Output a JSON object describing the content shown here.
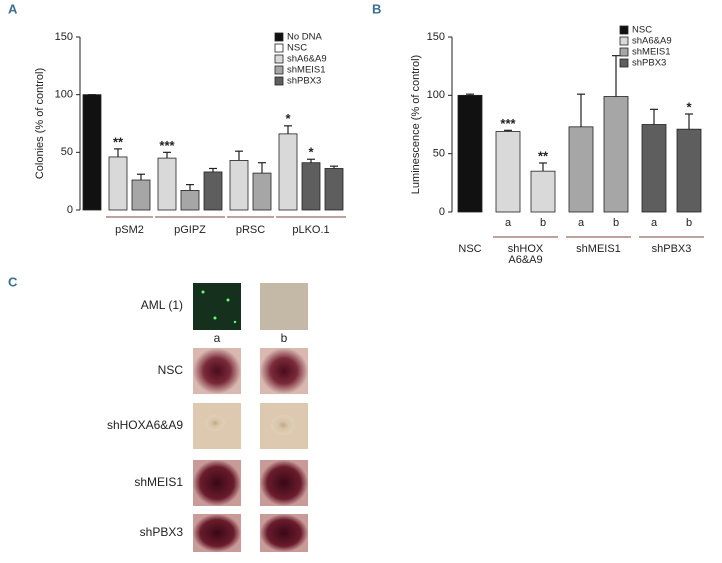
{
  "chart_data": [
    {
      "type": "bar",
      "panel": "A",
      "ylabel": "Colonies (% of control)",
      "ylim": [
        0,
        150
      ],
      "yticks": [
        0,
        50,
        100,
        150
      ],
      "series": [
        {
          "name": "No DNA",
          "color": "#111111"
        },
        {
          "name": "NSC",
          "color": "#ffffff"
        },
        {
          "name": "shA6&A9",
          "color": "#d9d9d9"
        },
        {
          "name": "shMEIS1",
          "color": "#a6a6a6"
        },
        {
          "name": "shPBX3",
          "color": "#5e5e5e"
        }
      ],
      "groups": [
        {
          "label": null,
          "bars": [
            {
              "series": 0,
              "value": 100,
              "error": 0
            }
          ]
        },
        {
          "label": "pSM2",
          "bars": [
            {
              "series": 2,
              "value": 46,
              "error": 7,
              "sig": "**"
            },
            {
              "series": 3,
              "value": 26,
              "error": 5
            }
          ]
        },
        {
          "label": "pGIPZ",
          "bars": [
            {
              "series": 2,
              "value": 45,
              "error": 5,
              "sig": "***"
            },
            {
              "series": 3,
              "value": 17,
              "error": 5
            },
            {
              "series": 4,
              "value": 33,
              "error": 3
            }
          ]
        },
        {
          "label": "pRSC",
          "bars": [
            {
              "series": 2,
              "value": 43,
              "error": 8
            },
            {
              "series": 3,
              "value": 32,
              "error": 9
            }
          ]
        },
        {
          "label": "pLKO.1",
          "bars": [
            {
              "series": 2,
              "value": 66,
              "error": 7,
              "sig": "*"
            },
            {
              "series": 4,
              "value": 41,
              "error": 3,
              "sig": "*"
            },
            {
              "series": 4,
              "value": 36,
              "error": 2
            }
          ]
        }
      ]
    },
    {
      "type": "bar",
      "panel": "B",
      "ylabel": "Luminescence (% of control)",
      "ylim": [
        0,
        150
      ],
      "yticks": [
        0,
        50,
        100,
        150
      ],
      "series": [
        {
          "name": "NSC",
          "color": "#111111"
        },
        {
          "name": "shA6&A9",
          "color": "#d9d9d9"
        },
        {
          "name": "shMEIS1",
          "color": "#a6a6a6"
        },
        {
          "name": "shPBX3",
          "color": "#5e5e5e"
        }
      ],
      "groups": [
        {
          "label": [
            "NSC"
          ],
          "bars": [
            {
              "series": 0,
              "value": 100,
              "error": 1
            }
          ]
        },
        {
          "label": [
            "shHOX",
            "A6&A9"
          ],
          "bars": [
            {
              "series": 1,
              "value": 69,
              "error": 1,
              "sig": "***",
              "sub": "a"
            },
            {
              "series": 1,
              "value": 35,
              "error": 7,
              "sig": "**",
              "sub": "b"
            }
          ]
        },
        {
          "label": [
            "shMEIS1"
          ],
          "bars": [
            {
              "series": 2,
              "value": 73,
              "error": 28,
              "sub": "a"
            },
            {
              "series": 2,
              "value": 99,
              "error": 35,
              "sub": "b"
            }
          ]
        },
        {
          "label": [
            "shPBX3"
          ],
          "bars": [
            {
              "series": 3,
              "value": 75,
              "error": 13,
              "sub": "a"
            },
            {
              "series": 3,
              "value": 71,
              "error": 13,
              "sig": "*",
              "sub": "b"
            }
          ]
        }
      ]
    }
  ],
  "panel_c": {
    "panel": "C",
    "rows": [
      "AML (1)",
      "NSC",
      "shHOXA6&A9",
      "shMEIS1",
      "shPBX3"
    ],
    "columns": [
      "a",
      "b"
    ]
  }
}
